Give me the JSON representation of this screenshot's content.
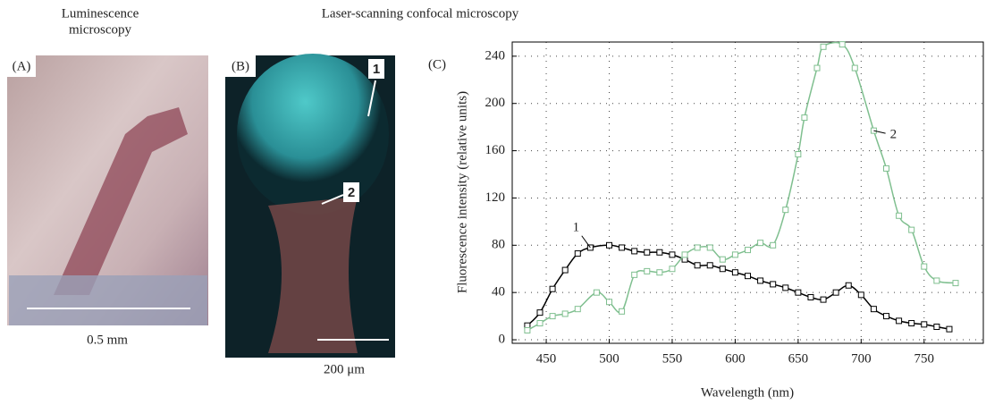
{
  "panels": {
    "a_title_line1": "Luminescence",
    "a_title_line2": "microscopy",
    "b_title": "Laser-scanning confocal microscopy",
    "a_label": "(A)",
    "b_label": "(B)",
    "c_label": "(C)",
    "a_scale": "0.5 mm",
    "b_scale": "200 μm",
    "b_mark_1": "1",
    "b_mark_2": "2"
  },
  "chart_data": {
    "type": "line",
    "xlabel": "Wavelength (nm)",
    "ylabel": "Fluorescence intensity (relative units)",
    "xlim": [
      423,
      797
    ],
    "ylim": [
      -3,
      252
    ],
    "xticks": [
      450,
      500,
      550,
      600,
      650,
      700,
      750
    ],
    "yticks": [
      0,
      40,
      80,
      120,
      160,
      200,
      240
    ],
    "grid": true,
    "series": [
      {
        "name": "1",
        "color": "#000000",
        "x": [
          435,
          445,
          455,
          465,
          475,
          485,
          500,
          510,
          520,
          530,
          540,
          550,
          560,
          570,
          580,
          590,
          600,
          610,
          620,
          630,
          640,
          650,
          660,
          670,
          680,
          690,
          700,
          710,
          720,
          730,
          740,
          750,
          760,
          770
        ],
        "values": [
          12,
          23,
          43,
          59,
          73,
          78,
          80,
          78,
          75,
          74,
          74,
          72,
          68,
          63,
          63,
          60,
          57,
          54,
          50,
          47,
          44,
          40,
          36,
          34,
          40,
          46,
          38,
          26,
          20,
          16,
          14,
          13,
          11,
          9
        ]
      },
      {
        "name": "2",
        "color": "#7fbf8f",
        "x": [
          435,
          445,
          455,
          465,
          475,
          490,
          500,
          510,
          520,
          530,
          540,
          550,
          560,
          570,
          580,
          590,
          600,
          610,
          620,
          630,
          640,
          650,
          655,
          665,
          670,
          685,
          695,
          710,
          720,
          730,
          740,
          750,
          760,
          775
        ],
        "values": [
          8,
          14,
          20,
          22,
          26,
          40,
          32,
          24,
          55,
          58,
          57,
          60,
          72,
          78,
          78,
          68,
          72,
          76,
          82,
          80,
          110,
          157,
          188,
          230,
          248,
          250,
          230,
          177,
          145,
          105,
          93,
          62,
          50,
          48
        ]
      }
    ]
  }
}
